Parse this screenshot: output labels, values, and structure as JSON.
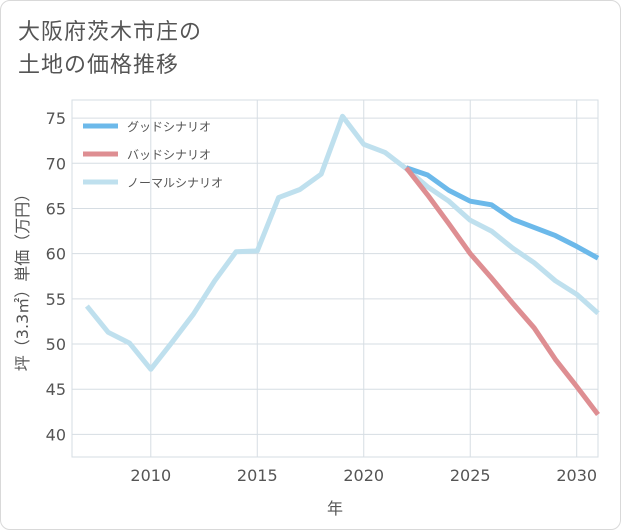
{
  "title": {
    "line1": "大阪府茨木市庄の",
    "line2": "土地の価格推移"
  },
  "chart_data": {
    "type": "line",
    "xlabel": "年",
    "ylabel": "坪（3.3㎡）単価（万円）",
    "xlim": [
      2006.3,
      2031
    ],
    "ylim": [
      37.5,
      77
    ],
    "xticks": [
      2010,
      2015,
      2020,
      2025,
      2030
    ],
    "yticks": [
      40,
      45,
      50,
      55,
      60,
      65,
      70,
      75
    ],
    "grid": true,
    "legend_position": "top-left",
    "series": [
      {
        "name": "グッドシナリオ",
        "color": "#6cb9ea",
        "x": [
          2022,
          2023,
          2024,
          2025,
          2026,
          2027,
          2028,
          2029,
          2030,
          2031
        ],
        "y": [
          69.5,
          68.7,
          67.0,
          65.8,
          65.4,
          63.8,
          62.9,
          62.0,
          60.8,
          59.5
        ]
      },
      {
        "name": "バッドシナリオ",
        "color": "#de8e92",
        "x": [
          2022,
          2023,
          2024,
          2025,
          2026,
          2027,
          2028,
          2029,
          2030,
          2031
        ],
        "y": [
          69.5,
          66.5,
          63.3,
          60.0,
          57.3,
          54.5,
          51.8,
          48.3,
          45.3,
          42.2
        ]
      },
      {
        "name": "ノーマルシナリオ",
        "color": "#bfe0ee",
        "x": [
          2007,
          2008,
          2009,
          2010,
          2011,
          2012,
          2013,
          2014,
          2015,
          2016,
          2017,
          2018,
          2019,
          2020,
          2021,
          2022,
          2023,
          2024,
          2025,
          2026,
          2027,
          2028,
          2029,
          2030,
          2031
        ],
        "y": [
          54.2,
          51.3,
          50.1,
          47.2,
          50.2,
          53.3,
          57.0,
          60.2,
          60.3,
          66.2,
          67.1,
          68.8,
          75.2,
          72.1,
          71.2,
          69.4,
          67.4,
          65.8,
          63.7,
          62.5,
          60.6,
          59.0,
          57.0,
          55.5,
          53.4
        ]
      }
    ]
  }
}
